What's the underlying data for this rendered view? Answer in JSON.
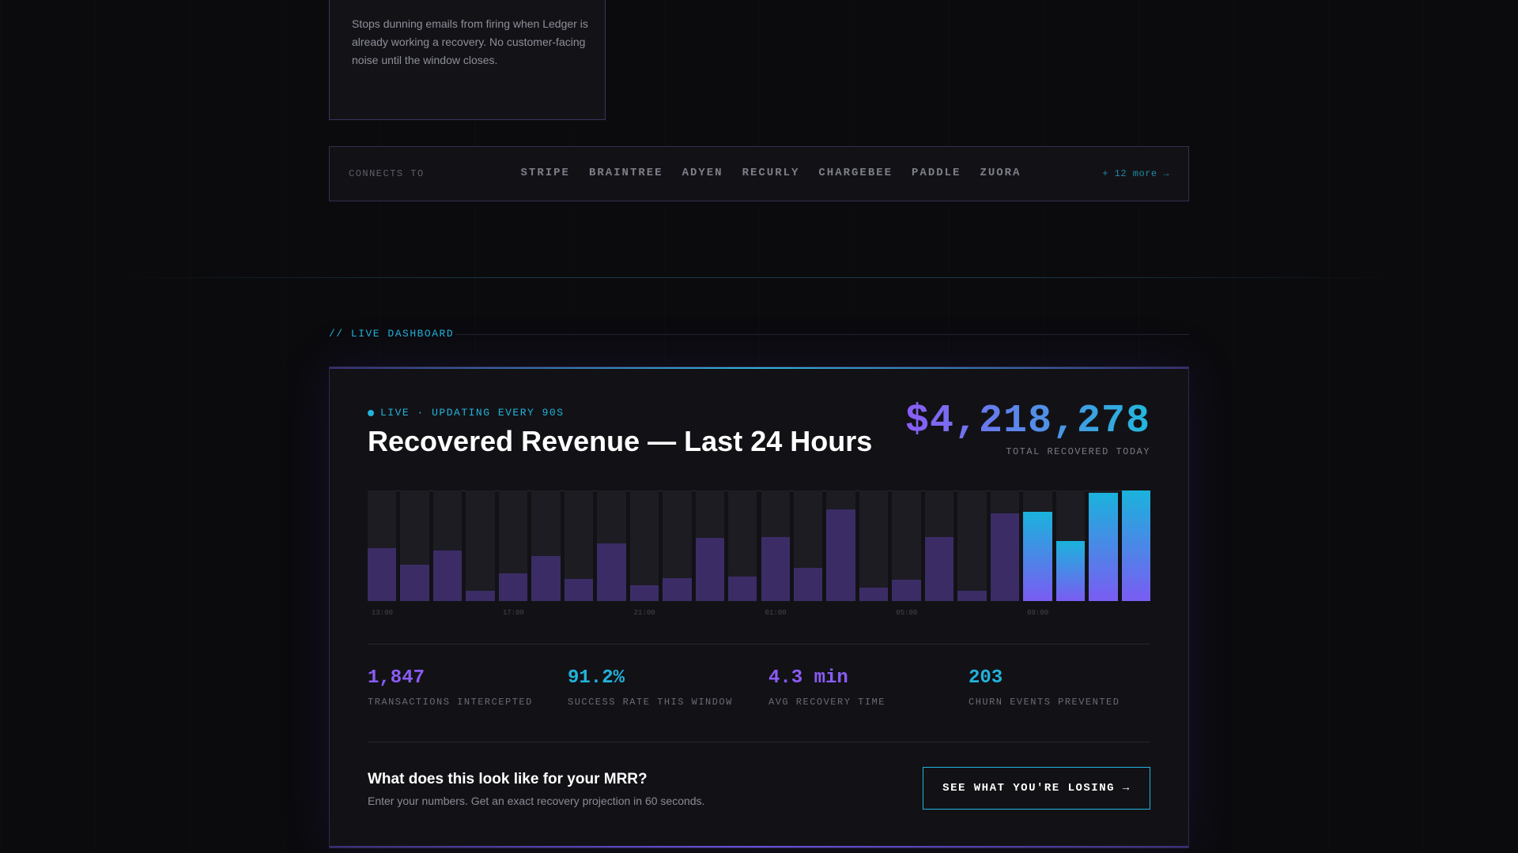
{
  "feature_card": {
    "description": "Stops dunning emails from firing when Ledger is already working a recovery. No customer-facing noise until the window closes."
  },
  "connects": {
    "label": "CONNECTS TO",
    "providers": [
      "STRIPE",
      "BRAINTREE",
      "ADYEN",
      "RECURLY",
      "CHARGEBEE",
      "PADDLE",
      "ZUORA"
    ],
    "more_link": "+ 12 more →"
  },
  "section": {
    "label": "// LIVE DASHBOARD"
  },
  "dashboard": {
    "live_text": "LIVE · UPDATING EVERY 90S",
    "title": "Recovered Revenue — Last 24 Hours",
    "total_value": "$4,218,278",
    "total_label": "TOTAL RECOVERED TODAY",
    "accent_colors": {
      "purple": "#8b5cf6",
      "cyan": "#22b3dc"
    }
  },
  "chart_data": {
    "type": "bar",
    "x_tick_labels": [
      "13:00",
      "17:00",
      "21:00",
      "01:00",
      "05:00",
      "09:00"
    ],
    "values": [
      0.48,
      0.33,
      0.46,
      0.09,
      0.25,
      0.41,
      0.2,
      0.52,
      0.14,
      0.21,
      0.57,
      0.22,
      0.58,
      0.3,
      0.83,
      0.12,
      0.19,
      0.58,
      0.09,
      0.79,
      0.81,
      0.54,
      0.98,
      1.0
    ],
    "highlighted_from_index": 20,
    "ylim": [
      0,
      1
    ]
  },
  "stats": [
    {
      "value": "1,847",
      "label": "TRANSACTIONS INTERCEPTED",
      "color": "#8b5cf6"
    },
    {
      "value": "91.2%",
      "label": "SUCCESS RATE THIS WINDOW",
      "color": "#22b3dc"
    },
    {
      "value": "4.3 min",
      "label": "AVG RECOVERY TIME",
      "color": "#8b5cf6"
    },
    {
      "value": "203",
      "label": "CHURN EVENTS PREVENTED",
      "color": "#22b3dc"
    }
  ],
  "cta": {
    "heading": "What does this look like for your MRR?",
    "subtext": "Enter your numbers. Get an exact recovery projection in 60 seconds.",
    "button_label": "SEE WHAT YOU'RE LOSING →"
  }
}
